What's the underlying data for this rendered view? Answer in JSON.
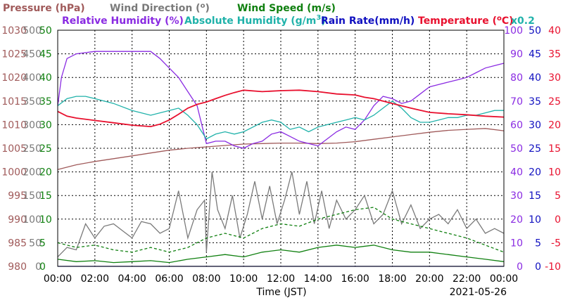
{
  "chart_data": {
    "type": "line",
    "date": "2021-05-26",
    "xlabel": "Time (JST)",
    "x_ticks": [
      "00:00",
      "02:00",
      "04:00",
      "06:00",
      "08:00",
      "10:00",
      "12:00",
      "14:00",
      "16:00",
      "18:00",
      "20:00",
      "22:00",
      "00:00"
    ],
    "x_range_hours": [
      0,
      24
    ],
    "grid": true,
    "legend_placement": "top",
    "series": [
      {
        "key": "pressure",
        "name": "Pressure (hPa)",
        "color": "#a05a5a",
        "axis": "pressure",
        "x": [
          0,
          1,
          2,
          3,
          4,
          5,
          6,
          7,
          8,
          9,
          10,
          11,
          12,
          13,
          14,
          15,
          16,
          17,
          18,
          19,
          20,
          21,
          22,
          23,
          24
        ],
        "y": [
          1000.5,
          1001.5,
          1002.2,
          1002.8,
          1003.4,
          1004.0,
          1004.6,
          1005.0,
          1005.3,
          1005.6,
          1005.9,
          1006.0,
          1006.1,
          1006.1,
          1006.0,
          1006.1,
          1006.4,
          1006.9,
          1007.4,
          1007.9,
          1008.4,
          1008.8,
          1009.0,
          1009.2,
          1008.7
        ]
      },
      {
        "key": "wind_direction",
        "name": "Wind Direction (°)",
        "color": "#7a7a7a",
        "axis": "wind_direction",
        "x": [
          0,
          0.5,
          1,
          1.5,
          2,
          2.5,
          3,
          3.5,
          4,
          4.5,
          5,
          5.5,
          6,
          6.5,
          7,
          7.5,
          7.9,
          8,
          8.3,
          8.6,
          9,
          9.4,
          9.8,
          10.2,
          10.6,
          11,
          11.4,
          11.8,
          12.2,
          12.6,
          13,
          13.4,
          13.8,
          14.2,
          14.6,
          15,
          15.5,
          16,
          16.5,
          17,
          17.5,
          18,
          18.5,
          19,
          19.5,
          20,
          20.5,
          21,
          21.5,
          22,
          22.5,
          23,
          23.5,
          24
        ],
        "y": [
          20,
          40,
          35,
          90,
          60,
          85,
          90,
          75,
          60,
          95,
          90,
          70,
          80,
          160,
          60,
          120,
          140,
          30,
          200,
          120,
          80,
          150,
          60,
          110,
          180,
          100,
          170,
          90,
          140,
          200,
          110,
          180,
          90,
          160,
          80,
          140,
          100,
          120,
          150,
          90,
          110,
          160,
          90,
          130,
          80,
          100,
          110,
          90,
          120,
          80,
          100,
          70,
          80,
          70
        ]
      },
      {
        "key": "wind_speed_avg",
        "name": "Wind Speed (m/s)",
        "color": "#108010",
        "axis": "wind_speed",
        "x": [
          0,
          1,
          2,
          3,
          4,
          5,
          6,
          7,
          8,
          9,
          10,
          11,
          12,
          13,
          14,
          15,
          16,
          17,
          18,
          19,
          20,
          21,
          22,
          23,
          24
        ],
        "y": [
          1.5,
          1.0,
          1.2,
          0.8,
          1.0,
          1.2,
          0.8,
          1.5,
          2.0,
          2.5,
          2.0,
          3.0,
          3.5,
          3.0,
          4.0,
          4.5,
          4.0,
          4.5,
          3.5,
          3.0,
          3.0,
          2.5,
          2.0,
          1.5,
          1.0
        ]
      },
      {
        "key": "wind_speed_gust",
        "name": "Wind Speed (m/s)",
        "color": "#108010",
        "dashed": true,
        "axis": "wind_speed",
        "x": [
          0,
          1,
          2,
          3,
          4,
          5,
          6,
          7,
          8,
          9,
          10,
          11,
          12,
          13,
          14,
          15,
          16,
          17,
          18,
          19,
          20,
          21,
          22,
          23,
          24
        ],
        "y": [
          5.0,
          4.0,
          4.5,
          3.5,
          3.0,
          4.0,
          3.0,
          4.0,
          6.0,
          7.0,
          6.0,
          8.0,
          9.0,
          8.5,
          10.0,
          11.0,
          12.0,
          12.5,
          10.0,
          9.0,
          8.0,
          7.0,
          6.0,
          4.5,
          3.0
        ]
      },
      {
        "key": "relative_humidity",
        "name": "Relative Humidity (%)",
        "color": "#8a2be2",
        "axis": "relative_humidity",
        "x": [
          0,
          0.2,
          0.5,
          1,
          1.5,
          2,
          3,
          4,
          5,
          5.5,
          6,
          6.5,
          7,
          7.5,
          8,
          8.5,
          9,
          9.5,
          10,
          10.5,
          11,
          11.5,
          12,
          12.5,
          13,
          13.5,
          14,
          14.5,
          15,
          15.5,
          16,
          16.5,
          17,
          17.5,
          18,
          18.5,
          19,
          19.5,
          20,
          20.5,
          21,
          21.5,
          22,
          22.5,
          23,
          23.5,
          24
        ],
        "y": [
          68,
          80,
          88,
          90,
          90.5,
          91,
          91,
          91,
          91,
          88,
          84,
          80,
          74,
          68,
          52,
          53,
          53,
          51,
          50,
          52,
          53,
          56,
          57,
          55,
          53,
          52,
          51,
          54,
          57,
          59,
          58,
          62,
          68,
          72,
          71,
          69,
          70,
          73,
          76,
          77,
          78,
          79,
          80,
          82,
          84,
          85,
          86
        ]
      },
      {
        "key": "absolute_humidity",
        "name": "Absolute Humidity (g/m³)",
        "color": "#20b2aa",
        "axis": "absolute_humidity",
        "x": [
          0,
          0.5,
          1,
          1.5,
          2,
          3,
          4,
          5,
          6,
          6.5,
          7,
          7.5,
          8,
          8.5,
          9,
          9.5,
          10,
          10.5,
          11,
          11.5,
          12,
          12.5,
          13,
          13.5,
          14,
          14.5,
          15,
          15.5,
          16,
          16.5,
          17,
          17.5,
          18,
          18.5,
          19,
          19.5,
          20,
          20.5,
          21,
          21.5,
          22,
          22.5,
          23,
          23.5,
          24
        ],
        "y": [
          68,
          71,
          72,
          72,
          71,
          69,
          66,
          64,
          66,
          67,
          64,
          60,
          54,
          56,
          57,
          56,
          57,
          59,
          61,
          62,
          61,
          58,
          59,
          57,
          59,
          60,
          61,
          62,
          63,
          62,
          64,
          67,
          70,
          67,
          63,
          61,
          61,
          62,
          63,
          63,
          64,
          64,
          65,
          66,
          66
        ]
      },
      {
        "key": "rain_rate",
        "name": "Rain Rate(mm/h)",
        "color": "#1010c0",
        "axis": "rain_rate",
        "x": [
          0,
          24
        ],
        "y": [
          0,
          0
        ]
      },
      {
        "key": "temperature",
        "name": "Temperature (°C)",
        "color": "#e8102e",
        "axis": "temperature",
        "x": [
          0,
          0.5,
          1,
          2,
          3,
          4,
          5,
          5.5,
          6,
          6.5,
          7,
          7.5,
          8,
          8.5,
          9,
          9.5,
          10,
          11,
          12,
          13,
          14,
          15,
          16,
          16.5,
          17,
          18,
          19,
          20,
          21,
          22,
          23,
          24
        ],
        "y": [
          22.8,
          21.8,
          21.4,
          20.9,
          20.4,
          19.9,
          19.6,
          20.1,
          21.0,
          22.2,
          23.5,
          24.3,
          24.8,
          25.5,
          26.2,
          26.8,
          27.3,
          27.0,
          27.2,
          27.3,
          27.0,
          26.5,
          26.3,
          25.8,
          25.5,
          24.5,
          23.5,
          22.6,
          22.3,
          22.1,
          21.8,
          21.6
        ]
      }
    ],
    "axes": {
      "pressure": {
        "label": "Pressure (hPa)",
        "color": "#a05a5a",
        "min": 980,
        "max": 1030,
        "side": "left",
        "ticks": [
          980,
          985,
          990,
          995,
          1000,
          1005,
          1010,
          1015,
          1020,
          1025,
          1030
        ]
      },
      "wind_direction": {
        "label": "Wind Direction (°)",
        "color": "#7a7a7a",
        "min": 0,
        "max": 500,
        "side": "left",
        "ticks": [
          0,
          50,
          100,
          150,
          200,
          250,
          300,
          350,
          400,
          450,
          500
        ]
      },
      "wind_speed": {
        "label": "Wind Speed (m/s)",
        "color": "#108010",
        "min": 0,
        "max": 50,
        "side": "left",
        "ticks": [
          0,
          5,
          10,
          15,
          20,
          25,
          30,
          35,
          40,
          45,
          50
        ]
      },
      "relative_humidity": {
        "label": "Relative Humidity (%)",
        "color": "#8a2be2",
        "min": 0,
        "max": 100,
        "side": "right",
        "ticks": [
          0,
          10,
          20,
          30,
          40,
          50,
          60,
          70,
          80,
          90,
          100
        ]
      },
      "absolute_humidity": {
        "label": "Absolute Humidity (g/m³)",
        "color": "#20b2aa",
        "scale_note": "x0.2",
        "side": "right"
      },
      "rain_rate": {
        "label": "Rain Rate(mm/h)",
        "color": "#1010c0",
        "min": 0,
        "max": 50,
        "side": "right",
        "ticks": [
          0,
          5,
          10,
          15,
          20,
          25,
          30,
          35,
          40,
          45,
          50
        ]
      },
      "temperature": {
        "label": "Temperature (°C)",
        "color": "#e8102e",
        "min": -10,
        "max": 40,
        "side": "right",
        "ticks": [
          -10,
          -5,
          0,
          5,
          10,
          15,
          20,
          25,
          30,
          35,
          40
        ]
      }
    }
  },
  "legend": {
    "pressure": "Pressure (hPa)",
    "wind_direction": "Wind Direction (",
    "wind_direction_suffix": ")",
    "wind_speed": "Wind Speed (m/s)",
    "relative_humidity": "Relative Humidity (%)",
    "absolute_humidity": "Absolute Humidity (g/m",
    "absolute_humidity_sup": "3",
    "absolute_humidity_suffix": ")",
    "rain_rate": "Rain Rate(mm/h)",
    "temperature": "Temperature (",
    "temperature_suffix": "C)",
    "absolute_humidity_scale": "x0.2"
  },
  "footer": {
    "xlabel": "Time (JST)",
    "date": "2021-05-26"
  }
}
